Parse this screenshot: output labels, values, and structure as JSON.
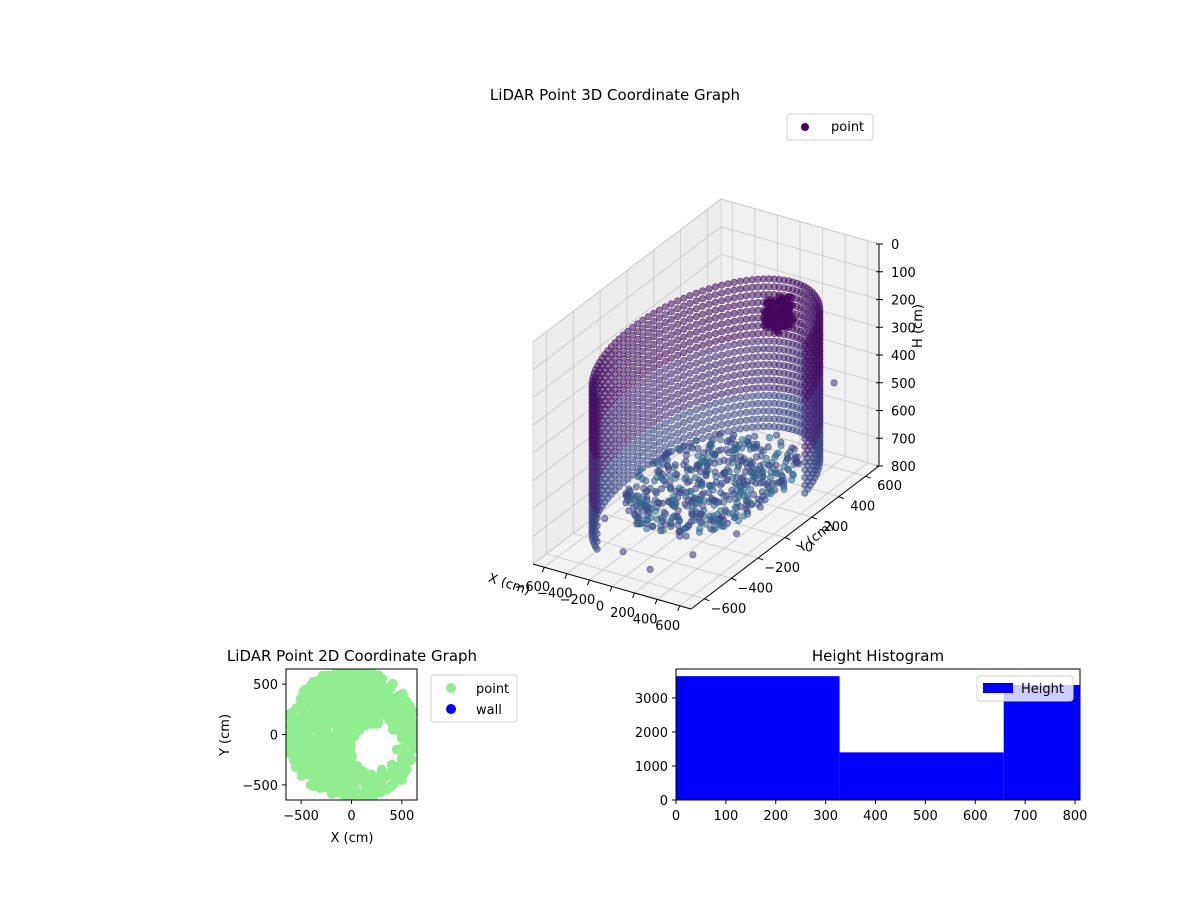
{
  "chart_data": [
    {
      "type": "scatter",
      "projection": "3d",
      "title": "LiDAR Point 3D Coordinate Graph",
      "xlabel": "X (cm)",
      "ylabel": "Y (cm)",
      "zlabel": "H (cm)",
      "xlim": [
        -700,
        700
      ],
      "ylim": [
        -700,
        700
      ],
      "zlim": [
        0,
        800
      ],
      "z_inverted": true,
      "xticks": [
        -600,
        -400,
        -200,
        0,
        200,
        400,
        600
      ],
      "yticks": [
        -600,
        -400,
        -200,
        0,
        200,
        400,
        600
      ],
      "zticks": [
        0,
        100,
        200,
        300,
        400,
        500,
        600,
        700,
        800
      ],
      "legend": {
        "entries": [
          "point"
        ],
        "position": "upper right"
      },
      "colormap": "viridis",
      "marker_color": "#440154",
      "grid": true,
      "series": [
        {
          "name": "point",
          "shape": "scan ring: points on a circle of radius ~650 cm around the origin covering the -x/+y half, stacked in height 200-750 cm, with a floor cluster near 750 cm and a dense blob near the top",
          "ring_radius": 650,
          "ring_height_range": [
            200,
            750
          ],
          "ring_angle_range_deg": [
            20,
            250
          ],
          "floor_cluster": {
            "x_range": [
              -650,
              400
            ],
            "y_range": [
              -400,
              600
            ],
            "h": 760
          },
          "blob": {
            "x": 50,
            "y": 500,
            "h": 250,
            "radius": 110
          },
          "outliers": [
            {
              "x": -650,
              "y": -50,
              "h": 780
            },
            {
              "x": -600,
              "y": -250,
              "h": 790
            },
            {
              "x": -200,
              "y": -450,
              "h": 790
            },
            {
              "x": 100,
              "y": -500,
              "h": 800
            },
            {
              "x": 300,
              "y": -350,
              "h": 780
            },
            {
              "x": 450,
              "y": -150,
              "h": 760
            },
            {
              "x": 550,
              "y": 100,
              "h": 650
            },
            {
              "x": 620,
              "y": 300,
              "h": 500
            },
            {
              "x": 600,
              "y": 450,
              "h": 420
            }
          ]
        }
      ]
    },
    {
      "type": "scatter",
      "title": "LiDAR Point 2D Coordinate Graph",
      "xlabel": "X (cm)",
      "ylabel": "Y (cm)",
      "xlim": [
        -650,
        650
      ],
      "ylim": [
        -650,
        650
      ],
      "xticks": [
        -500,
        0,
        500
      ],
      "yticks": [
        -500,
        0,
        500
      ],
      "legend": {
        "entries": [
          "point",
          "wall"
        ],
        "position": "outside right"
      },
      "series": [
        {
          "name": "point",
          "color": "#90ee90",
          "shape": "disk of radius ~650 cm centred near the origin, dense on the -x/+y side, open gap around (250,-150)",
          "disk_radius": 650,
          "gap": {
            "x": 250,
            "y": -150,
            "radius": 250
          },
          "scattered": [
            [
              400,
              -300
            ],
            [
              500,
              -400
            ],
            [
              450,
              -150
            ],
            [
              550,
              -50
            ],
            [
              300,
              -350
            ],
            [
              200,
              -400
            ],
            [
              -50,
              -250
            ],
            [
              600,
              100
            ],
            [
              550,
              300
            ],
            [
              500,
              -450
            ]
          ]
        },
        {
          "name": "wall",
          "color": "#0000ff",
          "values": []
        }
      ]
    },
    {
      "type": "bar",
      "title": "Height Histogram",
      "xlim": [
        0,
        810
      ],
      "ylim": [
        0,
        3850
      ],
      "xticks": [
        0,
        100,
        200,
        300,
        400,
        500,
        600,
        700,
        800
      ],
      "yticks": [
        0,
        1000,
        2000,
        3000
      ],
      "legend": {
        "entries": [
          "Height"
        ],
        "position": "upper right"
      },
      "series": [
        {
          "name": "Height",
          "color": "#0000ff",
          "bins": [
            [
              0,
              328
            ],
            [
              328,
              657
            ],
            [
              657,
              810
            ]
          ],
          "values": [
            3640,
            1400,
            3380
          ]
        }
      ]
    }
  ]
}
